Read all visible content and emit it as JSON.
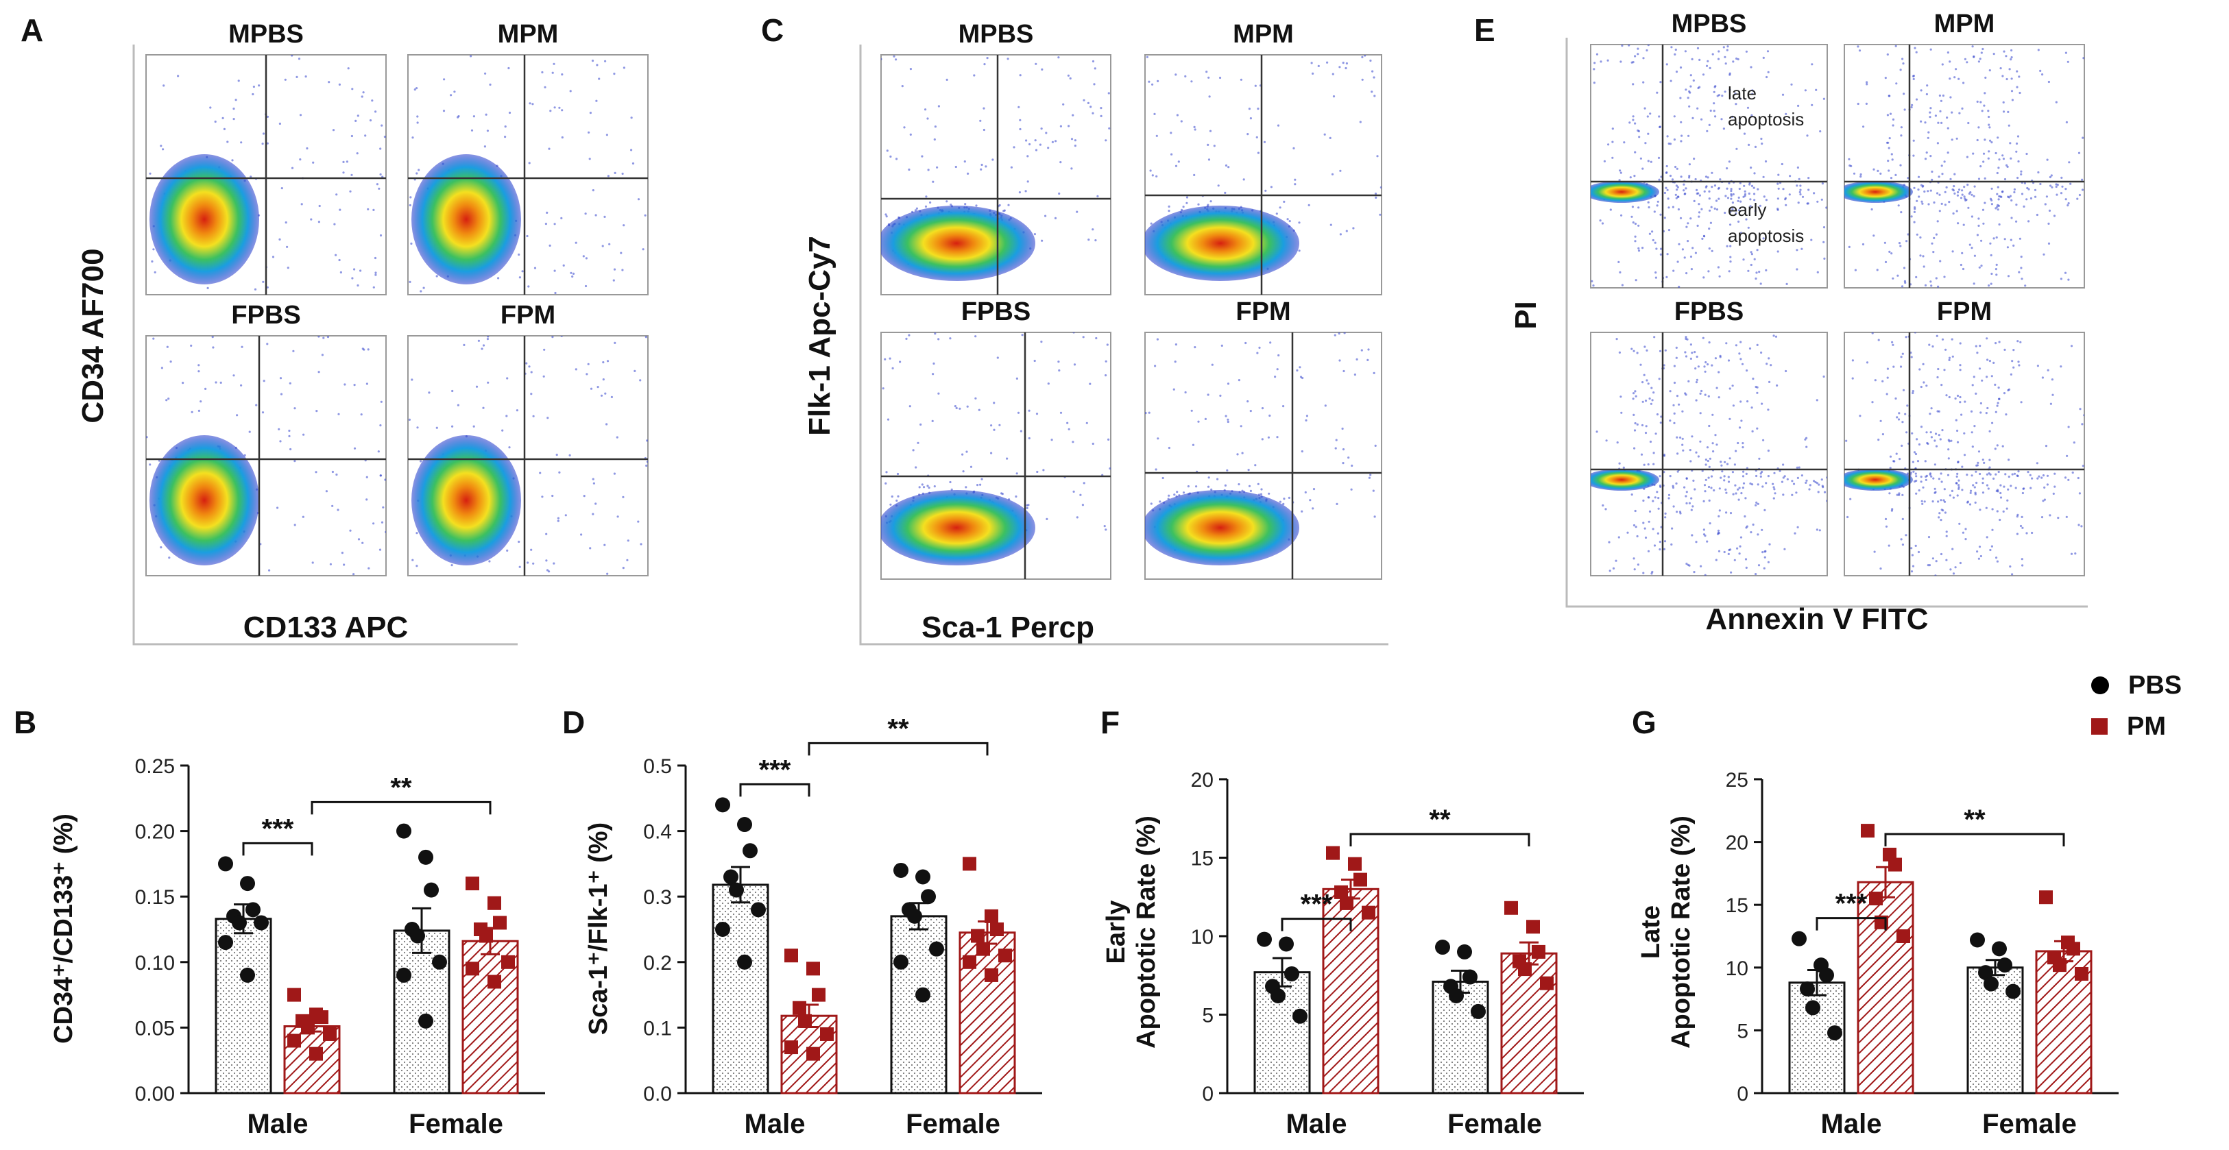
{
  "colors": {
    "pbs": "#111111",
    "pm": "#a01818",
    "density_low": "#3344cc",
    "density_high": "#d62010",
    "frame": "#222222"
  },
  "legend": [
    {
      "label": "PBS",
      "icon": "black-dot"
    },
    {
      "label": "PM",
      "icon": "red-square"
    }
  ],
  "flow_panels": [
    {
      "letter": "A",
      "ylabel": "CD34 AF700",
      "xlabel": "CD133 APC",
      "plots": [
        {
          "title": "MPBS"
        },
        {
          "title": "MPM"
        },
        {
          "title": "FPBS"
        },
        {
          "title": "FPM"
        }
      ],
      "annotations": []
    },
    {
      "letter": "C",
      "ylabel": "Flk-1 Apc-Cy7",
      "xlabel": "Sca-1 Percp",
      "plots": [
        {
          "title": "MPBS"
        },
        {
          "title": "MPM"
        },
        {
          "title": "FPBS"
        },
        {
          "title": "FPM"
        }
      ],
      "annotations": []
    },
    {
      "letter": "E",
      "ylabel": "PI",
      "xlabel": "Annexin V FITC",
      "plots": [
        {
          "title": "MPBS"
        },
        {
          "title": "MPM"
        },
        {
          "title": "FPBS"
        },
        {
          "title": "FPM"
        }
      ],
      "annotations": [
        "late",
        "apoptosis",
        "early",
        "apoptosis"
      ]
    }
  ],
  "chart_data": [
    {
      "type": "bar",
      "letter": "B",
      "ylabel": "CD34⁺/CD133⁺ (%)",
      "categories": [
        "Male",
        "Female"
      ],
      "ylim": [
        0,
        0.25
      ],
      "yticks": [
        "0.00",
        "0.05",
        "0.10",
        "0.15",
        "0.20",
        "0.25"
      ],
      "significance": [
        {
          "label": "***",
          "between": "Male PBS vs Male PM"
        },
        {
          "label": "**",
          "between": "Male PM vs Female PM"
        }
      ],
      "series": [
        {
          "name": "PBS",
          "values": [
            0.133,
            0.124
          ],
          "sem": [
            0.011,
            0.017
          ],
          "points": [
            [
              0.175,
              0.16,
              0.14,
              0.135,
              0.13,
              0.13,
              0.115,
              0.09
            ],
            [
              0.2,
              0.18,
              0.155,
              0.125,
              0.12,
              0.1,
              0.09,
              0.055
            ]
          ]
        },
        {
          "name": "PM",
          "values": [
            0.051,
            0.116
          ],
          "sem": [
            0.004,
            0.01
          ],
          "points": [
            [
              0.075,
              0.06,
              0.058,
              0.055,
              0.05,
              0.045,
              0.04,
              0.03
            ],
            [
              0.16,
              0.145,
              0.13,
              0.125,
              0.12,
              0.1,
              0.095,
              0.085
            ]
          ]
        }
      ]
    },
    {
      "type": "bar",
      "letter": "D",
      "ylabel": "Sca-1⁺/Flk-1⁺ (%)",
      "categories": [
        "Male",
        "Female"
      ],
      "ylim": [
        0,
        0.5
      ],
      "yticks": [
        "0.0",
        "0.1",
        "0.2",
        "0.3",
        "0.4",
        "0.5"
      ],
      "significance": [
        {
          "label": "***",
          "between": "Male PBS vs Male PM"
        },
        {
          "label": "**",
          "between": "Male PM vs Female PM"
        }
      ],
      "series": [
        {
          "name": "PBS",
          "values": [
            0.318,
            0.27
          ],
          "sem": [
            0.027,
            0.02
          ],
          "points": [
            [
              0.44,
              0.41,
              0.37,
              0.33,
              0.31,
              0.28,
              0.25,
              0.2
            ],
            [
              0.34,
              0.33,
              0.3,
              0.28,
              0.27,
              0.22,
              0.2,
              0.15
            ]
          ]
        },
        {
          "name": "PM",
          "values": [
            0.118,
            0.245
          ],
          "sem": [
            0.017,
            0.017
          ],
          "points": [
            [
              0.21,
              0.19,
              0.15,
              0.13,
              0.11,
              0.09,
              0.07,
              0.06
            ],
            [
              0.35,
              0.27,
              0.25,
              0.24,
              0.22,
              0.21,
              0.2,
              0.18
            ]
          ]
        }
      ]
    },
    {
      "type": "bar",
      "letter": "F",
      "ylabel_lines": [
        "Early",
        "Apoptotic Rate (%)"
      ],
      "categories": [
        "Male",
        "Female"
      ],
      "ylim": [
        0,
        20
      ],
      "yticks": [
        "0",
        "5",
        "10",
        "15",
        "20"
      ],
      "significance": [
        {
          "label": "***",
          "between": "Male PBS vs Male PM"
        },
        {
          "label": "**",
          "between": "Male PM vs Female PM"
        }
      ],
      "series": [
        {
          "name": "PBS",
          "values": [
            7.7,
            7.1
          ],
          "sem": [
            0.9,
            0.7
          ],
          "points": [
            [
              9.8,
              9.5,
              7.6,
              6.8,
              6.2,
              4.9
            ],
            [
              9.3,
              9.0,
              7.4,
              6.8,
              6.2,
              5.2
            ]
          ]
        },
        {
          "name": "PM",
          "values": [
            13.0,
            8.9
          ],
          "sem": [
            0.6,
            0.7
          ],
          "points": [
            [
              15.3,
              14.6,
              13.6,
              12.8,
              12.1,
              11.5
            ],
            [
              11.8,
              10.6,
              9.0,
              8.4,
              7.9,
              7.0
            ]
          ]
        }
      ]
    },
    {
      "type": "bar",
      "letter": "G",
      "ylabel_lines": [
        "Late",
        "Apoptotic Rate (%)"
      ],
      "categories": [
        "Male",
        "Female"
      ],
      "ylim": [
        0,
        25
      ],
      "yticks": [
        "0",
        "5",
        "10",
        "15",
        "20",
        "25"
      ],
      "significance": [
        {
          "label": "***",
          "between": "Male PBS vs Male PM"
        },
        {
          "label": "**",
          "between": "Male PM vs Female PM"
        }
      ],
      "series": [
        {
          "name": "PBS",
          "values": [
            8.8,
            10.0
          ],
          "sem": [
            1.0,
            0.6
          ],
          "points": [
            [
              12.3,
              10.2,
              9.4,
              8.3,
              6.8,
              4.8
            ],
            [
              12.2,
              11.5,
              10.2,
              9.6,
              8.7,
              8.1
            ]
          ]
        },
        {
          "name": "PM",
          "values": [
            16.8,
            11.3
          ],
          "sem": [
            1.2,
            0.8
          ],
          "points": [
            [
              20.9,
              19.0,
              18.2,
              15.5,
              13.6,
              12.5
            ],
            [
              15.6,
              12.0,
              11.5,
              10.8,
              10.2,
              9.5
            ]
          ]
        }
      ]
    }
  ]
}
